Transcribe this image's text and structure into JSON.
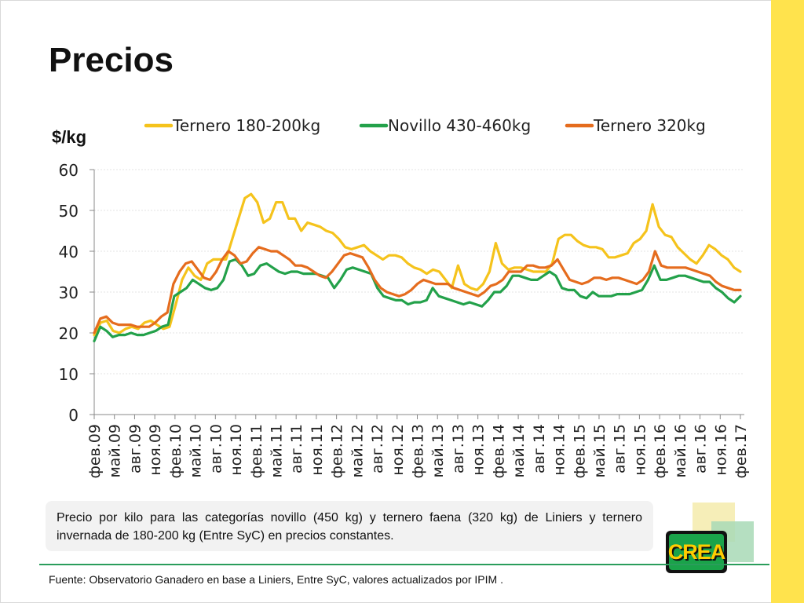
{
  "slide": {
    "title": "Precios",
    "y_unit": "$/kg",
    "note": "Precio por kilo para las categorías novillo (450 kg) y ternero faena (320 kg) de Liniers y ternero invernada de 180-200 kg (Entre SyC) en precios constantes.",
    "source": "Fuente: Observatorio Ganadero en base a Liniers, Entre SyC,  valores actualizados por IPIM .",
    "logo_text": "CREA",
    "colors": {
      "accent_bar": "#ffe34d",
      "separator": "#2a9d5b"
    }
  },
  "chart_data": {
    "type": "line",
    "ylim": [
      0,
      60
    ],
    "yticks": [
      0,
      10,
      20,
      30,
      40,
      50,
      60
    ],
    "grid": true,
    "legend_position": "top",
    "x_ticks": [
      "фев.09",
      "май.09",
      "авг.09",
      "ноя.09",
      "фев.10",
      "май.10",
      "авг.10",
      "ноя.10",
      "фев.11",
      "май.11",
      "авг.11",
      "ноя.11",
      "фев.12",
      "май.12",
      "авг.12",
      "ноя.12",
      "фев.13",
      "май.13",
      "авг.13",
      "ноя.13",
      "фев.14",
      "май.14",
      "авг.14",
      "ноя.14",
      "фев.15",
      "май.15",
      "авг.15",
      "ноя.15",
      "фев.16",
      "май.16",
      "авг.16",
      "ноя.16",
      "фев.17"
    ],
    "series": [
      {
        "name": "Ternero 180-200kg",
        "color": "#f5c31c",
        "values": [
          19.5,
          22.5,
          23,
          20.5,
          20,
          21,
          21.5,
          21,
          22.5,
          23,
          22,
          21,
          21.5,
          27,
          33,
          36,
          34,
          33,
          37,
          38,
          38,
          38,
          43,
          48,
          53,
          54,
          52,
          47,
          48,
          52,
          52,
          48,
          48,
          45,
          47,
          46.5,
          46,
          45,
          44.5,
          43,
          41,
          40.5,
          41,
          41.5,
          40,
          39,
          38,
          39,
          39,
          38.5,
          37,
          36,
          35.5,
          34.5,
          35.5,
          35,
          33,
          31,
          36.5,
          32,
          31,
          30.5,
          32,
          35,
          42,
          37,
          35.5,
          36,
          36,
          35.5,
          35,
          35,
          35,
          37,
          43,
          44,
          44,
          42.5,
          41.5,
          41,
          41,
          40.5,
          38.5,
          38.5,
          39,
          39.5,
          42,
          43,
          45,
          51.5,
          46,
          44,
          43.5,
          41,
          39.5,
          38,
          37,
          39,
          41.5,
          40.5,
          39,
          38,
          36,
          35
        ]
      },
      {
        "name": "Novillo 430-460kg",
        "color": "#23a14a",
        "values": [
          18,
          21.5,
          20.5,
          19,
          19.5,
          19.5,
          20,
          19.5,
          19.5,
          20,
          20.5,
          21.5,
          22,
          29,
          30,
          31,
          33,
          32,
          31,
          30.5,
          31,
          33,
          37.5,
          38,
          36.5,
          34,
          34.5,
          36.5,
          37,
          36,
          35,
          34.5,
          35,
          35,
          34.5,
          34.5,
          34.5,
          34,
          33.5,
          31,
          33,
          35.5,
          36,
          35.5,
          35,
          34.5,
          31,
          29,
          28.5,
          28,
          28,
          27,
          27.5,
          27.5,
          28,
          31,
          29,
          28.5,
          28,
          27.5,
          27,
          27.5,
          27,
          26.5,
          28,
          30,
          30,
          31.5,
          34,
          34,
          33.5,
          33,
          33,
          34,
          35,
          34,
          31,
          30.5,
          30.5,
          29,
          28.5,
          30,
          29,
          29,
          29,
          29.5,
          29.5,
          29.5,
          30,
          30.5,
          33,
          36.5,
          33,
          33,
          33.5,
          34,
          34,
          33.5,
          33,
          32.5,
          32.5,
          31,
          30,
          28.5,
          27.5,
          29
        ]
      },
      {
        "name": "Ternero 320kg",
        "color": "#e56c1e",
        "values": [
          20,
          23.5,
          24,
          22.5,
          22,
          22,
          22,
          21.5,
          21.5,
          21.5,
          22.5,
          24,
          25,
          32,
          35,
          37,
          37.5,
          35.5,
          33.5,
          33,
          35,
          38,
          40,
          39,
          37,
          37.5,
          39.5,
          41,
          40.5,
          40,
          40,
          39,
          38,
          36.5,
          36.5,
          36,
          35,
          34,
          33.5,
          35,
          37,
          39,
          39.5,
          39,
          38.5,
          36,
          33,
          31,
          30,
          29.5,
          29,
          29.5,
          30.5,
          32,
          33,
          32.5,
          32,
          32,
          32,
          31,
          30.5,
          30,
          29.5,
          29,
          30,
          31.5,
          32,
          33,
          35,
          35,
          35,
          36.5,
          36.5,
          36,
          36,
          36.5,
          38,
          35.5,
          33,
          32.5,
          32,
          32.5,
          33.5,
          33.5,
          33,
          33.5,
          33.5,
          33,
          32.5,
          32,
          33,
          35,
          40,
          36.5,
          36,
          36,
          36,
          36,
          35.5,
          35,
          34.5,
          34,
          32.5,
          31.5,
          31,
          30.5,
          30.5
        ]
      }
    ]
  }
}
